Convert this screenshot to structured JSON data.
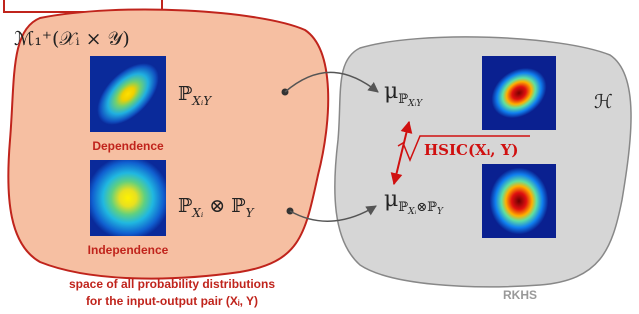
{
  "left_region": {
    "space_label": "ℳ₁⁺(𝒳ᵢ × 𝒴)",
    "joint_label": [
      "ℙ",
      "XᵢY"
    ],
    "dependence_caption": "Dependence",
    "product_label": [
      "ℙ",
      "Xᵢ",
      " ⊗ ℙ",
      "Y"
    ],
    "independence_caption": "Independence",
    "footer": [
      "space of all probability distributions",
      "for the input-output pair (Xᵢ, Y)"
    ]
  },
  "right_region": {
    "space_label": "ℋ",
    "joint_embedding": [
      "μ",
      "ℙ",
      "XᵢY"
    ],
    "product_embedding": [
      "μ",
      "ℙ",
      "Xᵢ",
      "⊗ℙ",
      "Y"
    ],
    "distance_label": "HSIC(Xᵢ, Y)",
    "footer": "RKHS"
  }
}
